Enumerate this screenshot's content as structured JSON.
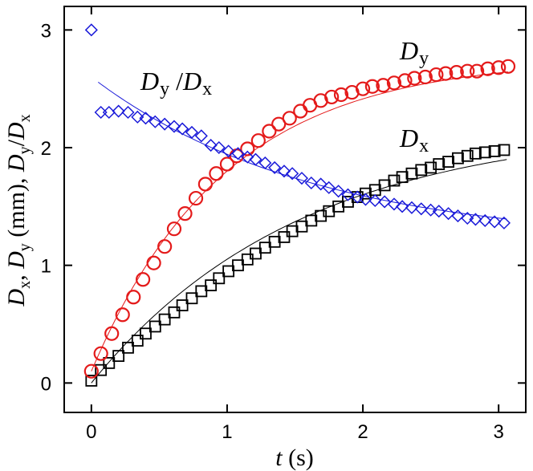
{
  "chart_data": {
    "type": "scatter",
    "title": "",
    "xlabel": {
      "var": "t",
      "unit": " (s)"
    },
    "ylabel": {
      "prefix": "D",
      "sub_x": "x",
      "sep1": ", ",
      "sub_y": "y",
      "unit": " (mm), ",
      "ratio_sub_y": "y",
      "slash": "/",
      "ratio_sub_x": "x"
    },
    "xlim": [
      -0.2,
      3.2
    ],
    "ylim": [
      -0.25,
      3.2
    ],
    "xticks": [
      0,
      1,
      2,
      3
    ],
    "yticks": [
      0,
      1,
      2,
      3
    ],
    "grid": false,
    "colors": {
      "dx": "#000000",
      "dy": "#e41a1a",
      "ratio": "#1a1ad9"
    },
    "annotations": {
      "dy": {
        "main": "D",
        "sub": "y"
      },
      "dx": {
        "main": "D",
        "sub": "x"
      },
      "ratio": {
        "main": "D",
        "sub": "y",
        "slash": " /",
        "main2": "D",
        "sub2": "x"
      }
    },
    "series": [
      {
        "name": "Dx",
        "marker": "square",
        "color": "#000000",
        "fit": "exponential",
        "x": [
          0.0,
          0.07,
          0.13,
          0.2,
          0.27,
          0.34,
          0.4,
          0.47,
          0.54,
          0.61,
          0.67,
          0.74,
          0.81,
          0.88,
          0.94,
          1.01,
          1.08,
          1.15,
          1.21,
          1.28,
          1.35,
          1.42,
          1.48,
          1.55,
          1.62,
          1.69,
          1.75,
          1.82,
          1.89,
          1.96,
          2.02,
          2.09,
          2.16,
          2.23,
          2.29,
          2.36,
          2.43,
          2.5,
          2.56,
          2.63,
          2.7,
          2.77,
          2.83,
          2.9,
          2.97,
          3.04
        ],
        "y": [
          0.02,
          0.11,
          0.17,
          0.23,
          0.3,
          0.36,
          0.42,
          0.48,
          0.54,
          0.6,
          0.66,
          0.72,
          0.78,
          0.83,
          0.89,
          0.95,
          1.0,
          1.05,
          1.1,
          1.15,
          1.2,
          1.24,
          1.29,
          1.33,
          1.38,
          1.42,
          1.46,
          1.5,
          1.54,
          1.58,
          1.61,
          1.64,
          1.68,
          1.72,
          1.75,
          1.78,
          1.81,
          1.83,
          1.86,
          1.88,
          1.91,
          1.93,
          1.95,
          1.96,
          1.97,
          1.98
        ]
      },
      {
        "name": "Dy",
        "marker": "circle",
        "color": "#e41a1a",
        "fit": "exponential",
        "x": [
          0.0,
          0.07,
          0.15,
          0.23,
          0.31,
          0.38,
          0.46,
          0.54,
          0.61,
          0.69,
          0.77,
          0.84,
          0.92,
          1.0,
          1.07,
          1.15,
          1.23,
          1.31,
          1.38,
          1.46,
          1.54,
          1.61,
          1.69,
          1.77,
          1.84,
          1.92,
          2.0,
          2.07,
          2.15,
          2.23,
          2.31,
          2.38,
          2.46,
          2.54,
          2.61,
          2.69,
          2.77,
          2.84,
          2.92,
          3.0,
          3.07
        ],
        "y": [
          0.1,
          0.25,
          0.42,
          0.58,
          0.73,
          0.88,
          1.02,
          1.16,
          1.31,
          1.44,
          1.57,
          1.69,
          1.78,
          1.86,
          1.93,
          1.99,
          2.06,
          2.14,
          2.2,
          2.25,
          2.31,
          2.36,
          2.4,
          2.43,
          2.45,
          2.47,
          2.5,
          2.52,
          2.53,
          2.55,
          2.57,
          2.59,
          2.6,
          2.62,
          2.63,
          2.64,
          2.65,
          2.65,
          2.67,
          2.68,
          2.69
        ]
      },
      {
        "name": "Dy/Dx",
        "marker": "diamond",
        "color": "#1a1ad9",
        "fit": "exponential",
        "x": [
          0.0,
          0.07,
          0.13,
          0.2,
          0.27,
          0.34,
          0.4,
          0.47,
          0.54,
          0.61,
          0.67,
          0.74,
          0.81,
          0.88,
          0.94,
          1.01,
          1.08,
          1.15,
          1.21,
          1.28,
          1.35,
          1.42,
          1.48,
          1.55,
          1.62,
          1.69,
          1.75,
          1.82,
          1.89,
          1.96,
          2.02,
          2.09,
          2.16,
          2.23,
          2.29,
          2.36,
          2.43,
          2.5,
          2.56,
          2.63,
          2.7,
          2.77,
          2.83,
          2.9,
          2.97,
          3.04
        ],
        "y": [
          3.0,
          2.3,
          2.3,
          2.31,
          2.3,
          2.26,
          2.25,
          2.22,
          2.2,
          2.18,
          2.16,
          2.13,
          2.1,
          2.02,
          2.0,
          1.97,
          1.95,
          1.92,
          1.9,
          1.87,
          1.83,
          1.8,
          1.78,
          1.74,
          1.7,
          1.69,
          1.66,
          1.63,
          1.6,
          1.58,
          1.56,
          1.55,
          1.54,
          1.52,
          1.5,
          1.49,
          1.48,
          1.47,
          1.46,
          1.44,
          1.42,
          1.4,
          1.39,
          1.38,
          1.37,
          1.36
        ]
      }
    ],
    "fits": {
      "Dx": {
        "A": 2.2,
        "B": 2.2,
        "k": 0.65
      },
      "Dy": {
        "A": 2.76,
        "B": 2.66,
        "k": 1.02
      },
      "Dy/Dx": {
        "A": 1.18,
        "B": -1.42,
        "k": 0.62,
        "x0": 0.05
      }
    }
  }
}
